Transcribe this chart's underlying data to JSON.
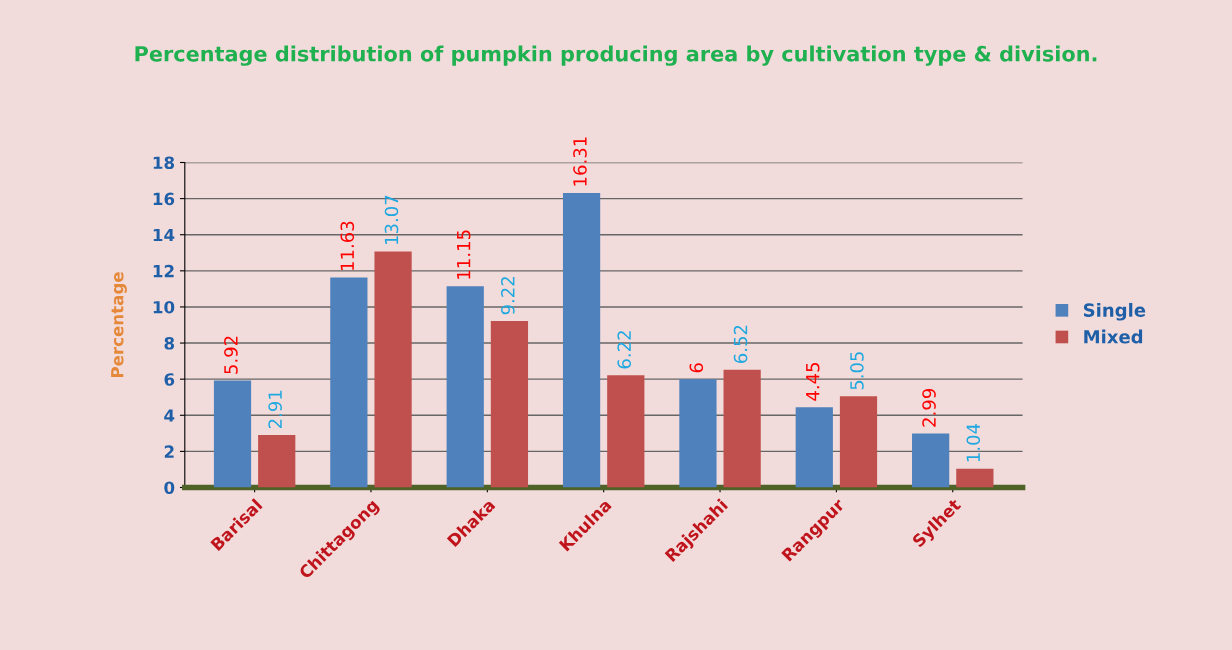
{
  "chart_data": {
    "type": "bar",
    "title": "Percentage distribution of pumpkin producing area by cultivation type & division.",
    "ylabel": "Percentage",
    "categories": [
      "Barisal",
      "Chittagong",
      "Dhaka",
      "Khulna",
      "Rajshahi",
      "Rangpur",
      "Sylhet"
    ],
    "series": [
      {
        "name": "Single",
        "color": "#4f81bd",
        "values": [
          5.92,
          11.63,
          11.15,
          16.31,
          6,
          4.45,
          2.99
        ]
      },
      {
        "name": "Mixed",
        "color": "#c0504d",
        "values": [
          2.91,
          13.07,
          9.22,
          6.22,
          6.52,
          5.05,
          1.04
        ]
      }
    ],
    "ylim": [
      0,
      18
    ],
    "yticks": [
      0,
      2,
      4,
      6,
      8,
      10,
      12,
      14,
      16,
      18
    ],
    "grid": "y",
    "legend": "right",
    "data_labels": true
  }
}
